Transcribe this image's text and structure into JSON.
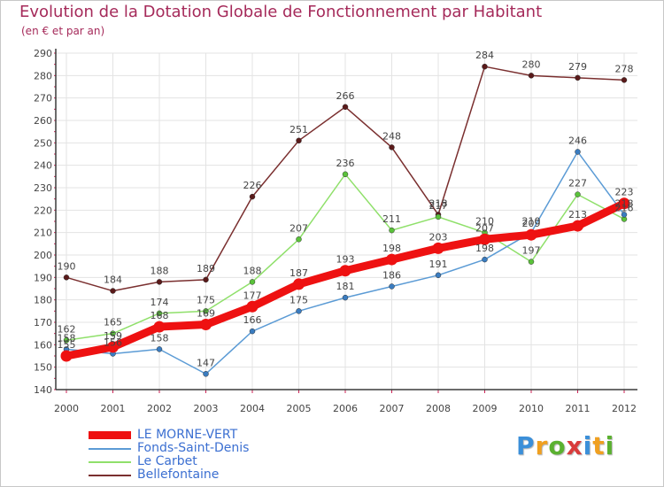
{
  "colors": {
    "title": "#a52a5a",
    "axis": "#3a3a3a",
    "grid": "#e3e3e3",
    "tick_mark": "#cc2255",
    "label": "#444444",
    "legend_text": "#3b6fd1"
  },
  "chart_data": {
    "type": "line",
    "title": "Evolution de la Dotation Globale de Fonctionnement par Habitant",
    "subtitle": "(en € et par an)",
    "xlabel": "",
    "ylabel": "",
    "ylim": [
      140,
      290
    ],
    "yticks": [
      140,
      150,
      160,
      170,
      180,
      190,
      200,
      210,
      220,
      230,
      240,
      250,
      260,
      270,
      280,
      290
    ],
    "grid": true,
    "legend_position": "bottom-left",
    "categories": [
      "2000",
      "2001",
      "2002",
      "2003",
      "2004",
      "2005",
      "2006",
      "2007",
      "2008",
      "2009",
      "2010",
      "2011",
      "2012"
    ],
    "series": [
      {
        "name": "Bellefontaine",
        "color": "#7a2f2f",
        "marker_color": "#5a1a1a",
        "width": 1.5,
        "marker": 3,
        "values": [
          190,
          184,
          188,
          189,
          226,
          251,
          266,
          248,
          218,
          284,
          280,
          279,
          278
        ],
        "labels": [
          "190",
          "184",
          "188",
          "189",
          "226",
          "251",
          "266",
          "248",
          "218",
          "284",
          "280",
          "279",
          "278"
        ]
      },
      {
        "name": "Le Carbet",
        "color": "#8fe06a",
        "marker_color": "#5ac23a",
        "width": 1.5,
        "marker": 3,
        "values": [
          162,
          165,
          174,
          175,
          188,
          207,
          236,
          211,
          217,
          210,
          197,
          227,
          216
        ],
        "labels": [
          "162",
          "165",
          "174",
          "175",
          "188",
          "207",
          "236",
          "211",
          "217",
          "210",
          "197",
          "227",
          "216"
        ]
      },
      {
        "name": "Fonds-Saint-Denis",
        "color": "#5b9bd5",
        "marker_color": "#3a7cc0",
        "width": 1.5,
        "marker": 3,
        "values": [
          158,
          156,
          158,
          147,
          166,
          175,
          181,
          186,
          191,
          198,
          210,
          246,
          218
        ],
        "labels": [
          "158",
          "156",
          "158",
          "147",
          "166",
          "175",
          "181",
          "186",
          "191",
          "198",
          "210",
          "246",
          "218"
        ]
      },
      {
        "name": "LE MORNE-VERT",
        "color": "#ee1111",
        "marker_color": "#ee1111",
        "width": 9,
        "marker": 6.5,
        "values": [
          155,
          159,
          168,
          169,
          177,
          187,
          193,
          198,
          203,
          207,
          209,
          213,
          223
        ],
        "labels": [
          "155",
          "159",
          "168",
          "169",
          "177",
          "187",
          "193",
          "198",
          "203",
          "207",
          "209",
          "213",
          "223"
        ]
      }
    ]
  },
  "legend": {
    "items": [
      {
        "label": "LE MORNE-VERT",
        "color": "#ee1111",
        "thick": true
      },
      {
        "label": "Fonds-Saint-Denis",
        "color": "#5b9bd5",
        "thick": false
      },
      {
        "label": "Le Carbet",
        "color": "#8fe06a",
        "thick": false
      },
      {
        "label": "Bellefontaine",
        "color": "#7a2f2f",
        "thick": false
      }
    ]
  },
  "logo": {
    "text": "Proxiti",
    "letter_colors": [
      "#3b8fd9",
      "#f0a020",
      "#5bb130",
      "#d93b3b",
      "#3b8fd9",
      "#f0a020",
      "#5bb130"
    ]
  }
}
